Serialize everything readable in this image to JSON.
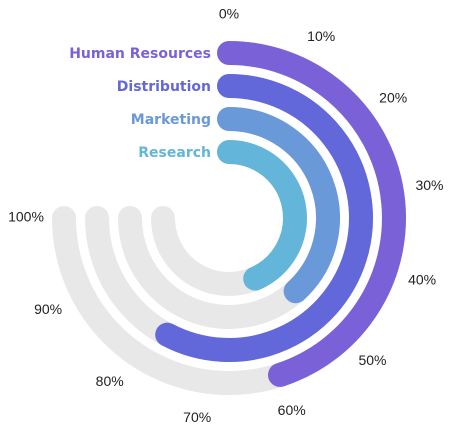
{
  "chart_data": {
    "type": "radial-bar",
    "title": "",
    "categories": [
      "Human Resources",
      "Distribution",
      "Marketing",
      "Research"
    ],
    "values": [
      60,
      77,
      51,
      58
    ],
    "value_unit": "%",
    "scale_max": 100,
    "start_angle_deg": 0,
    "end_angle_deg": 270,
    "tick_labels": [
      "0%",
      "10%",
      "20%",
      "30%",
      "40%",
      "50%",
      "60%",
      "70%",
      "80%",
      "90%",
      "100%"
    ],
    "colors": [
      "#7b61d8",
      "#6267d9",
      "#6a99d9",
      "#63b6d9"
    ],
    "track_color": "#e8e8e8",
    "label_placement": "left-of-bar-start",
    "legend": false,
    "grid": false
  }
}
